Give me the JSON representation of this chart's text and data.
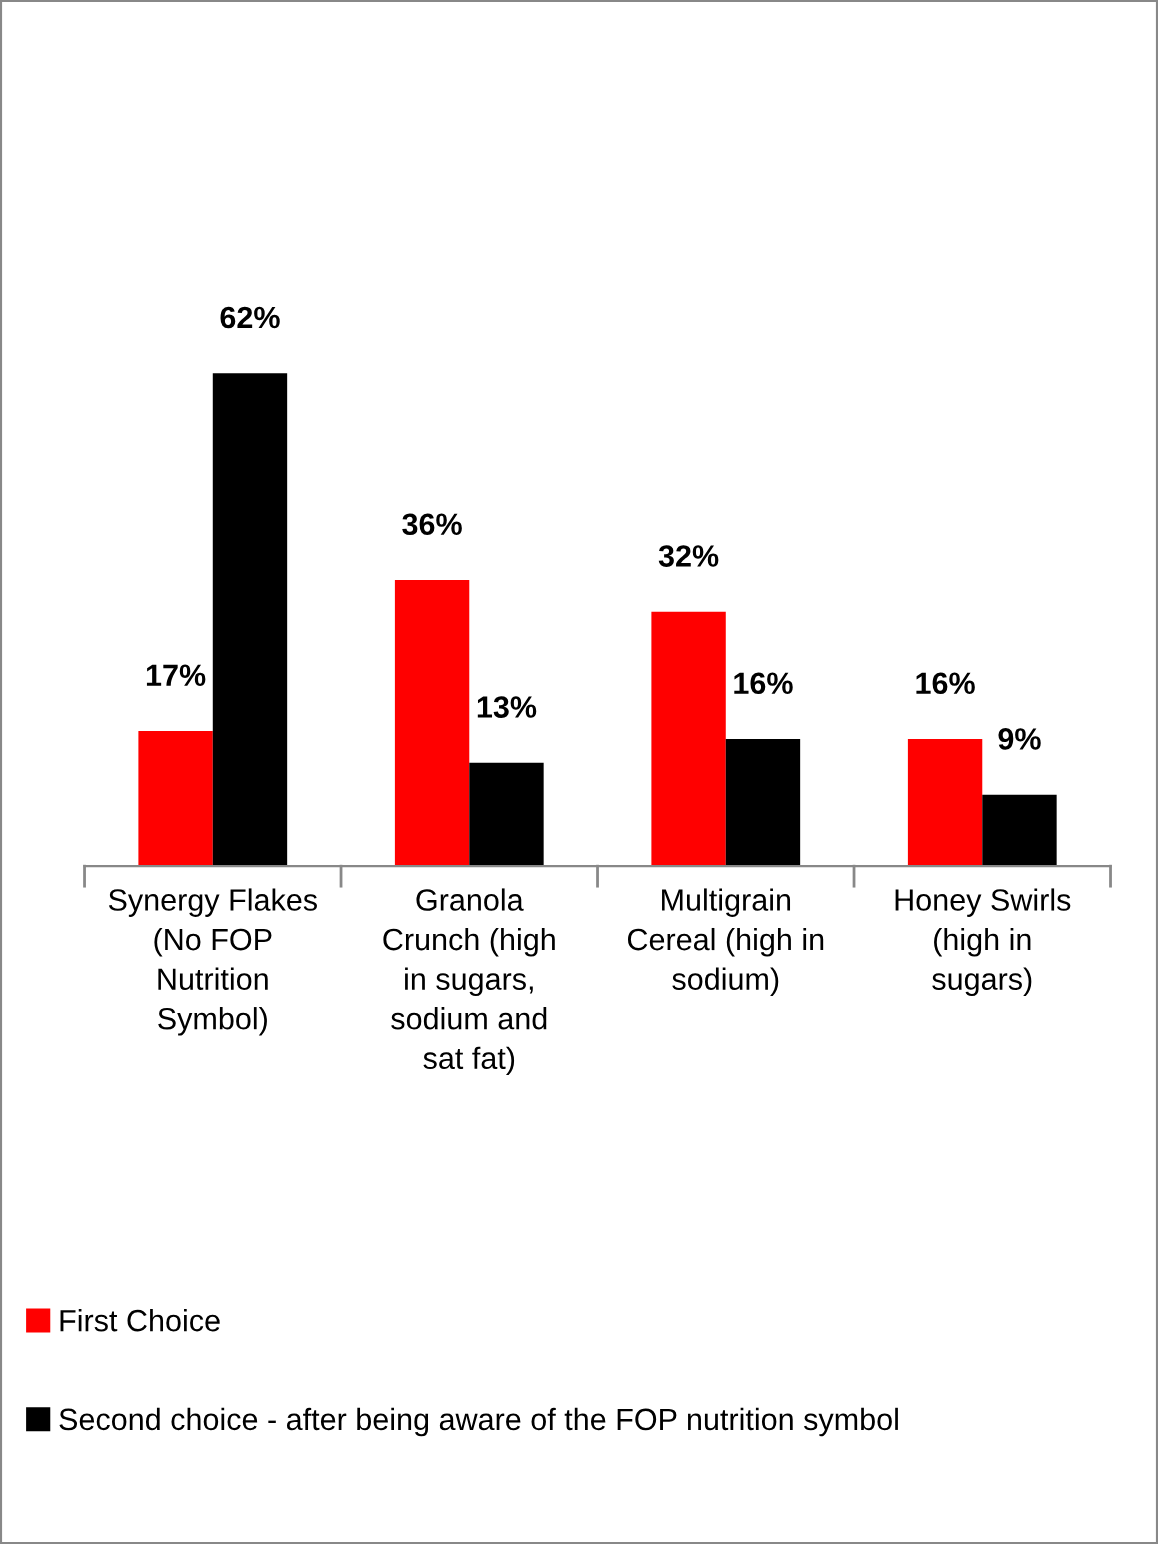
{
  "chart_data": {
    "type": "bar",
    "categories": [
      "Synergy Flakes\n(No FOP\nNutrition\nSymbol)",
      "Granola\nCrunch (high\nin sugars,\nsodium and\nsat fat)",
      "Multigrain\nCereal (high in\nsodium)",
      "Honey Swirls\n(high in\nsugars)"
    ],
    "series": [
      {
        "name": "First Choice",
        "color": "#ff0000",
        "values": [
          17,
          36,
          32,
          16
        ],
        "value_labels": [
          "17%",
          "36%",
          "32%",
          "16%"
        ]
      },
      {
        "name": "Second choice - after being aware of the FOP nutrition symbol",
        "color": "#000000",
        "values": [
          62,
          13,
          16,
          9
        ],
        "value_labels": [
          "62%",
          "13%",
          "16%",
          "9%"
        ]
      }
    ],
    "legend": "bottom",
    "grid": false,
    "tick_labels": "x"
  }
}
